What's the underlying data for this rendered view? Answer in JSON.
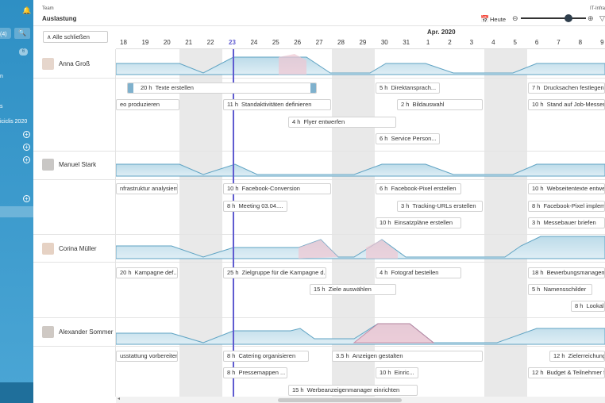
{
  "sidebar": {
    "items": [
      "(4)",
      "6",
      "n",
      "s",
      "iciclis 2020"
    ]
  },
  "header": {
    "breadcrumb": "Team",
    "title": "Auslastung",
    "today_label": "Heute",
    "right_label": "IT-Infra",
    "collapse_all": "Alle schließen",
    "month": "Apr. 2020"
  },
  "days": [
    "18",
    "19",
    "20",
    "21",
    "22",
    "23",
    "24",
    "25",
    "26",
    "27",
    "28",
    "29",
    "30",
    "31",
    "1",
    "2",
    "3",
    "4",
    "5",
    "6",
    "7",
    "8",
    "9"
  ],
  "persons": [
    {
      "name": "Anna Groß"
    },
    {
      "name": "Manuel Stark"
    },
    {
      "name": "Corina Müller"
    },
    {
      "name": "Alexander Sommer"
    }
  ],
  "tasks": {
    "anna": [
      {
        "hours": "20 h",
        "label": "Texte erstellen"
      },
      {
        "hours": "",
        "label": "eo produzieren"
      },
      {
        "hours": "11 h",
        "label": "Standaktivitäten definieren"
      },
      {
        "hours": "4 h",
        "label": "Flyer entwerfen"
      },
      {
        "hours": "5 h",
        "label": "Direktansprach..."
      },
      {
        "hours": "2 h",
        "label": "Bildauswahl"
      },
      {
        "hours": "6 h",
        "label": "Service Person..."
      },
      {
        "hours": "7 h",
        "label": "Drucksachen festlegen"
      },
      {
        "hours": "10 h",
        "label": "Stand auf Job-Messen"
      }
    ],
    "manuel": [
      {
        "hours": "",
        "label": "nfrastruktur analysiern"
      },
      {
        "hours": "10 h",
        "label": "Facebook-Conversion"
      },
      {
        "hours": "8 h",
        "label": "Meeting 03.04...."
      },
      {
        "hours": "6 h",
        "label": "Facebook-Pixel erstellen"
      },
      {
        "hours": "3 h",
        "label": "Tracking-URLs erstellen"
      },
      {
        "hours": "10 h",
        "label": "Einsatzpläne erstellen"
      },
      {
        "hours": "10 h",
        "label": "Webseitentexte entwerf"
      },
      {
        "hours": "8 h",
        "label": "Facebook-Pixel impleme"
      },
      {
        "hours": "3 h",
        "label": "Messebauer briefen"
      }
    ],
    "corina": [
      {
        "hours": "20 h",
        "label": "Kampagne def..."
      },
      {
        "hours": "25 h",
        "label": "Zielgruppe für die Kampagne d..."
      },
      {
        "hours": "4 h",
        "label": "Fotograf bestellen"
      },
      {
        "hours": "15 h",
        "label": "Ziele auswählen"
      },
      {
        "hours": "18 h",
        "label": "Bewerbungsmanageme"
      },
      {
        "hours": "5 h",
        "label": "Namensschilder"
      },
      {
        "hours": "8 h",
        "label": "Lookal"
      }
    ],
    "alexander": [
      {
        "hours": "",
        "label": "usstattung vorbereiten"
      },
      {
        "hours": "8 h",
        "label": "Catering organisieren"
      },
      {
        "hours": "3.5 h",
        "label": "Anzeigen gestalten"
      },
      {
        "hours": "8 h",
        "label": "Pressemappen ..."
      },
      {
        "hours": "10 h",
        "label": "Einric..."
      },
      {
        "hours": "15 h",
        "label": "Werbeanzeigenmanager einrichten"
      },
      {
        "hours": "12 h",
        "label": "Zielerreichung"
      },
      {
        "hours": "12 h",
        "label": "Budget & Teilnehmer fe"
      }
    ]
  }
}
